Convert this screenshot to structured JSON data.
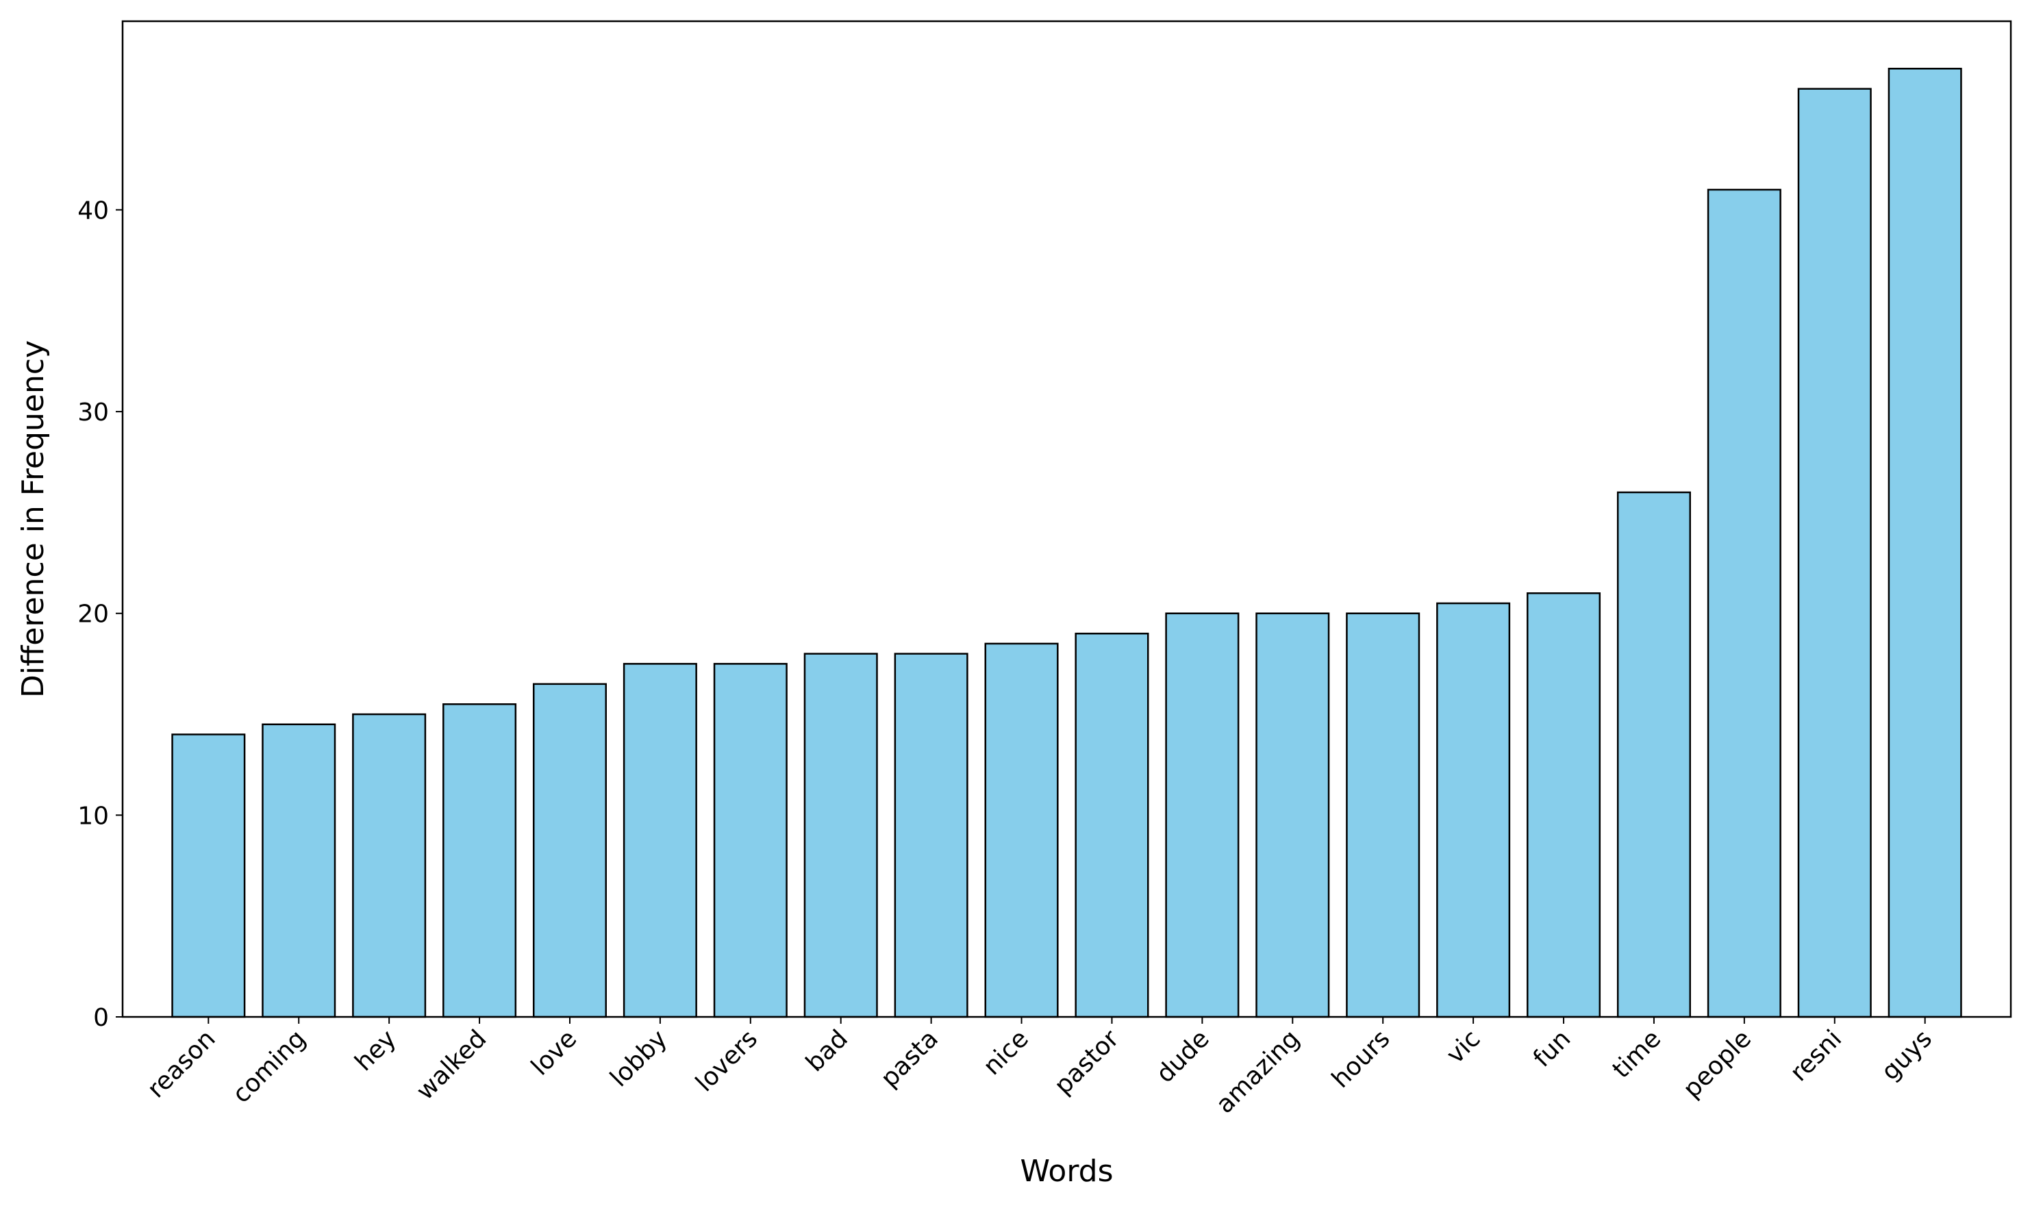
{
  "chart_data": {
    "type": "bar",
    "title": "",
    "xlabel": "Words",
    "ylabel": "Difference in Frequency",
    "categories": [
      "reason",
      "coming",
      "hey",
      "walked",
      "love",
      "lobby",
      "lovers",
      "bad",
      "pasta",
      "nice",
      "pastor",
      "dude",
      "amazing",
      "hours",
      "vic",
      "fun",
      "time",
      "people",
      "resni",
      "guys"
    ],
    "values": [
      14,
      14.5,
      15,
      15.5,
      16.5,
      17.5,
      17.5,
      18,
      18,
      18.5,
      19,
      20,
      20,
      20,
      20.5,
      21,
      26,
      41,
      46,
      47
    ],
    "ylim": [
      0,
      49.35
    ],
    "yticks": [
      0,
      10,
      20,
      30,
      40
    ],
    "bar_color": "#87ceeb",
    "bar_edge_color": "#000000",
    "grid": false,
    "legend": "none"
  }
}
